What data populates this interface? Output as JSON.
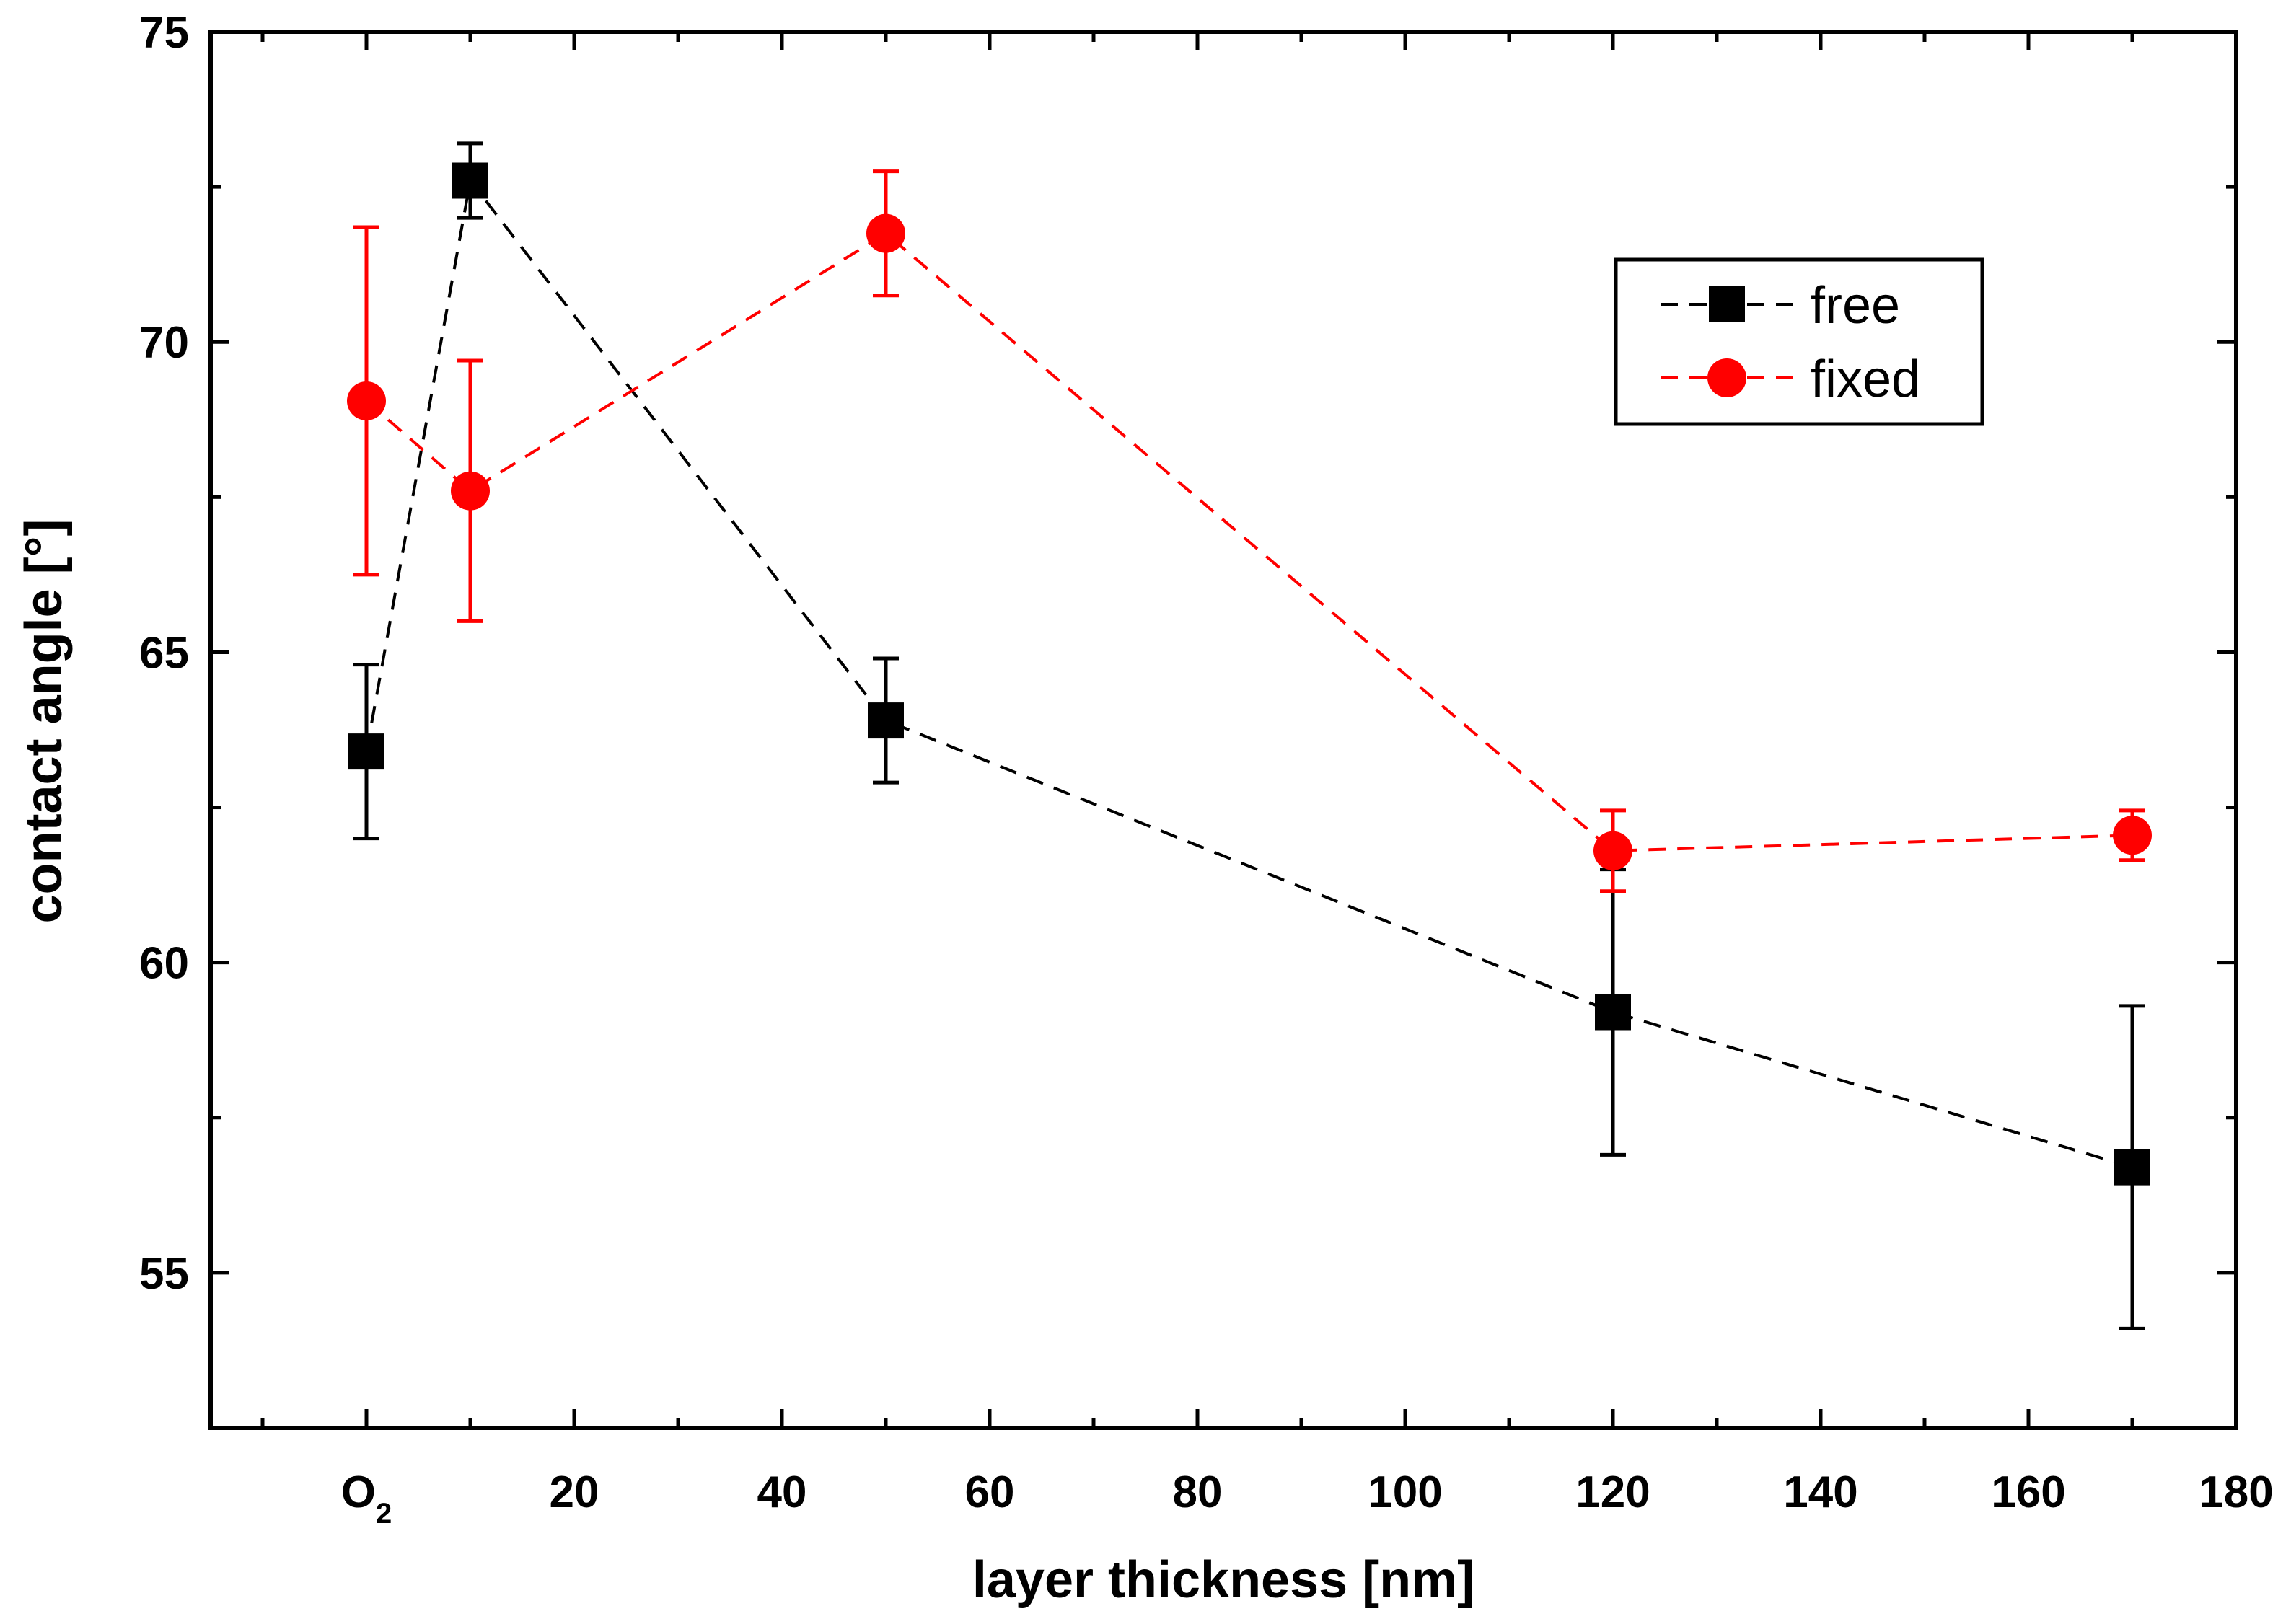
{
  "chart_data": {
    "type": "line",
    "title": "",
    "xlabel": "layer thickness [nm]",
    "ylabel": "contact angle [°]",
    "xlim": [
      -15,
      180
    ],
    "ylim": [
      52.5,
      75
    ],
    "x_ticks": [
      {
        "value": 0,
        "label": "O",
        "sub": "2"
      },
      {
        "value": 20,
        "label": "20"
      },
      {
        "value": 40,
        "label": "40"
      },
      {
        "value": 60,
        "label": "60"
      },
      {
        "value": 80,
        "label": "80"
      },
      {
        "value": 100,
        "label": "100"
      },
      {
        "value": 120,
        "label": "120"
      },
      {
        "value": 140,
        "label": "140"
      },
      {
        "value": 160,
        "label": "160"
      },
      {
        "value": 180,
        "label": "180"
      }
    ],
    "y_ticks": [
      55,
      60,
      65,
      70,
      75
    ],
    "grid": false,
    "legend": "top-right",
    "series": [
      {
        "name": "free",
        "color": "#000000",
        "marker": "square",
        "x": [
          0,
          10,
          50,
          120,
          170
        ],
        "y": [
          63.4,
          72.6,
          63.9,
          59.2,
          56.7
        ],
        "err": [
          1.4,
          0.6,
          1.0,
          2.3,
          2.6
        ]
      },
      {
        "name": "fixed",
        "color": "#ff0000",
        "marker": "circle",
        "x": [
          0,
          10,
          50,
          120,
          170
        ],
        "y": [
          69.05,
          67.6,
          71.75,
          61.8,
          62.05
        ],
        "err": [
          2.8,
          2.1,
          1.0,
          0.65,
          0.4
        ]
      }
    ]
  }
}
